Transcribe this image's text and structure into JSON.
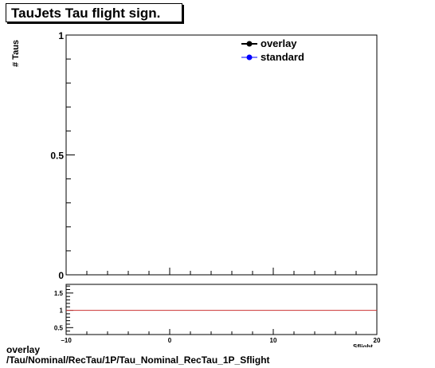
{
  "chart_data": [
    {
      "type": "line",
      "title": "TauJets Tau flight sign.",
      "ylabel": "# Taus",
      "xlim": [
        -10,
        20
      ],
      "ylim": [
        0,
        1
      ],
      "y_ticks": [
        "0",
        "0.5",
        "1"
      ],
      "series": [
        {
          "name": "overlay",
          "color": "#000000",
          "values": []
        },
        {
          "name": "standard",
          "color": "#0000ff",
          "values": []
        }
      ],
      "legend": "top-right",
      "grid": false
    },
    {
      "type": "line",
      "xlabel": "Sflight",
      "xlim": [
        -10,
        20
      ],
      "ylim": [
        0.3,
        1.75
      ],
      "x_ticks": [
        "−10",
        "0",
        "10",
        "20"
      ],
      "y_ticks": [
        "0.5",
        "1",
        "1.5"
      ],
      "reference_line": {
        "y": 1,
        "color": "#cc3333"
      },
      "grid": false
    }
  ],
  "footer": {
    "line1": "overlay",
    "line2": "/Tau/Nominal/RecTau/1P/Tau_Nominal_RecTau_1P_Sflight"
  }
}
